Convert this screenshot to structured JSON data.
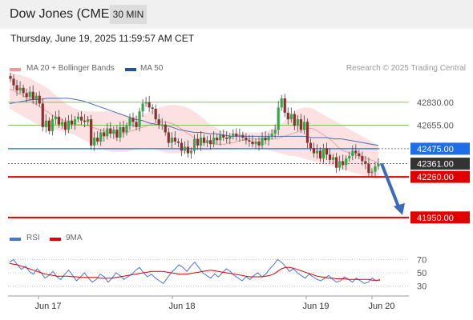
{
  "header": {
    "title": "Dow Jones (CME)",
    "interval": "30 MIN"
  },
  "timestamp": "Thursday, June 19, 2025 11:59:57 AM CET",
  "legend": {
    "bollinger": "MA 20 + Bollinger Bands",
    "ma50": "MA 50",
    "credit": "Research © 2025 Trading Central",
    "rsi": "RSI",
    "rsi_ma": "9MA"
  },
  "colors": {
    "up": "#3aa44a",
    "down": "#8b2f2f",
    "band": "#f8c8c8",
    "ma20": "#e8a4a4",
    "ma50": "#4a6fb5",
    "current": "#1f6ee6",
    "support": "#e00000",
    "resistance": "#7ab648",
    "arrow": "#3a6ab8",
    "rsi": "#4a72d8",
    "rsi_ma": "#e00000"
  },
  "chart_data": {
    "type": "candlestick",
    "title": "Dow Jones (CME)",
    "ylim": [
      41900,
      43000
    ],
    "x_labels": [
      "Jun 17",
      "Jun 18",
      "Jun 19",
      "Jun 20"
    ],
    "levels": [
      {
        "value": 42830,
        "label": "42830.00",
        "kind": "resistance"
      },
      {
        "value": 42655,
        "label": "42655.00",
        "kind": "resistance"
      },
      {
        "value": 42475,
        "label": "42475.00",
        "kind": "current"
      },
      {
        "value": 42361,
        "label": "42361.00",
        "kind": "last"
      },
      {
        "value": 42260,
        "label": "42260.00",
        "kind": "support"
      },
      {
        "value": 41950,
        "label": "41950.00",
        "kind": "support"
      }
    ],
    "closes": [
      43010,
      42960,
      42920,
      42940,
      42900,
      42870,
      42910,
      42850,
      42880,
      42820,
      42640,
      42690,
      42610,
      42700,
      42720,
      42660,
      42680,
      42620,
      42690,
      42660,
      42700,
      42720,
      42690,
      42680,
      42700,
      42500,
      42560,
      42530,
      42600,
      42570,
      42630,
      42590,
      42620,
      42560,
      42640,
      42600,
      42650,
      42710,
      42680,
      42640,
      42760,
      42820,
      42830,
      42790,
      42780,
      42700,
      42660,
      42660,
      42600,
      42520,
      42560,
      42530,
      42520,
      42460,
      42490,
      42440,
      42460,
      42550,
      42500,
      42560,
      42520,
      42540,
      42510,
      42560,
      42540,
      42580,
      42560,
      42550,
      42570,
      42590,
      42570,
      42580,
      42560,
      42540,
      42530,
      42510,
      42530,
      42500,
      42560,
      42540,
      42570,
      42590,
      42620,
      42790,
      42860,
      42750,
      42700,
      42740,
      42650,
      42700,
      42620,
      42680,
      42520,
      42480,
      42440,
      42460,
      42400,
      42480,
      42430,
      42390,
      42410,
      42330,
      42380,
      42350,
      42400,
      42420,
      42460,
      42440,
      42420,
      42380,
      42360,
      42290,
      42300,
      42340,
      42361
    ],
    "ma20": [
      42930,
      42920,
      42900,
      42890,
      42870,
      42850,
      42830,
      42810,
      42790,
      42770,
      42750,
      42730,
      42710,
      42700,
      42690,
      42680,
      42670,
      42660,
      42660,
      42650,
      42650,
      42640,
      42630,
      42620,
      42610,
      42600,
      42600,
      42590,
      42590,
      42590,
      42600,
      42610,
      42620,
      42630,
      42640,
      42650,
      42660,
      42670,
      42680,
      42680,
      42680,
      42670,
      42660,
      42640,
      42620,
      42600,
      42580,
      42560,
      42540,
      42530,
      42520,
      42520,
      42510,
      42510,
      42510,
      42510,
      42520,
      42520,
      42530,
      42540,
      42540,
      42550,
      42550,
      42550,
      42550,
      42550,
      42550,
      42550,
      42550,
      42560,
      42570,
      42580,
      42590,
      42600,
      42610,
      42620,
      42630,
      42630,
      42620,
      42600,
      42580,
      42560,
      42540,
      42510,
      42480,
      42460,
      42450,
      42440,
      42430,
      42420,
      42410,
      42400,
      42390,
      42380,
      42370
    ],
    "bb_upper": [
      43060,
      43050,
      43040,
      43030,
      43020,
      43000,
      42980,
      42960,
      42940,
      42910,
      42880,
      42850,
      42820,
      42800,
      42780,
      42770,
      42760,
      42760,
      42760,
      42760,
      42760,
      42760,
      42760,
      42750,
      42740,
      42730,
      42720,
      42720,
      42730,
      42740,
      42760,
      42780,
      42790,
      42800,
      42810,
      42810,
      42810,
      42800,
      42790,
      42770,
      42750,
      42720,
      42690,
      42660,
      42640,
      42620,
      42610,
      42600,
      42600,
      42600,
      42600,
      42600,
      42600,
      42600,
      42600,
      42610,
      42620,
      42640,
      42660,
      42690,
      42720,
      42760,
      42780,
      42790,
      42790,
      42780,
      42760,
      42740,
      42720,
      42700,
      42680,
      42660,
      42640,
      42620,
      42600,
      42580,
      42560,
      42540,
      42520,
      42500
    ],
    "bb_lower": [
      42780,
      42760,
      42740,
      42720,
      42700,
      42680,
      42660,
      42650,
      42640,
      42630,
      42620,
      42610,
      42600,
      42590,
      42580,
      42560,
      42540,
      42520,
      42500,
      42480,
      42470,
      42460,
      42450,
      42450,
      42450,
      42450,
      42460,
      42470,
      42480,
      42480,
      42480,
      42470,
      42460,
      42450,
      42440,
      42440,
      42440,
      42440,
      42450,
      42450,
      42460,
      42460,
      42460,
      42460,
      42470,
      42470,
      42470,
      42470,
      42470,
      42480,
      42480,
      42480,
      42480,
      42480,
      42480,
      42470,
      42460,
      42450,
      42440,
      42430,
      42420,
      42420,
      42410,
      42400,
      42390,
      42380,
      42370,
      42360,
      42350,
      42340,
      42330,
      42320,
      42310,
      42300,
      42290,
      42280,
      42270,
      42260,
      42250,
      42240
    ],
    "ma50": [
      42820,
      42830,
      42840,
      42850,
      42850,
      42860,
      42860,
      42860,
      42860,
      42850,
      42840,
      42820,
      42800,
      42780,
      42760,
      42740,
      42720,
      42700,
      42690,
      42670,
      42660,
      42650,
      42640,
      42620,
      42610,
      42600,
      42600,
      42590,
      42590,
      42580,
      42570,
      42570,
      42570,
      42570,
      42570,
      42570,
      42570,
      42570,
      42570,
      42570,
      42570,
      42560,
      42560,
      42560,
      42550,
      42550,
      42540,
      42530,
      42520,
      42510,
      42500
    ],
    "rsi": {
      "ylim": [
        20,
        80
      ],
      "ticks": [
        70,
        50,
        30
      ],
      "rsi": [
        66,
        70,
        62,
        55,
        60,
        52,
        48,
        56,
        50,
        42,
        46,
        52,
        44,
        40,
        48,
        54,
        46,
        38,
        44,
        50,
        42,
        36,
        40,
        48,
        44,
        36,
        42,
        50,
        46,
        40,
        44,
        48,
        54,
        58,
        50,
        44,
        48,
        42,
        38,
        34,
        42,
        50,
        56,
        62,
        58,
        52,
        60,
        66,
        58,
        50,
        46,
        42,
        48,
        44,
        50,
        56,
        52,
        46,
        42,
        38,
        44,
        40,
        46,
        50,
        44,
        48,
        56,
        62,
        70,
        66,
        60,
        52,
        56,
        50,
        46,
        42,
        48,
        44,
        40,
        38,
        42,
        46,
        40,
        36,
        38,
        44,
        40,
        36,
        42,
        38,
        34,
        36,
        42,
        38,
        40
      ],
      "ma": [
        64,
        63,
        62,
        60,
        58,
        56,
        54,
        52,
        50,
        48,
        47,
        46,
        45,
        45,
        45,
        45,
        44,
        44,
        43,
        43,
        43,
        43,
        43,
        42,
        42,
        42,
        42,
        43,
        44,
        45,
        46,
        47,
        48,
        49,
        50,
        51,
        52,
        52,
        52,
        52,
        51,
        50,
        49,
        48,
        48,
        48,
        49,
        50,
        51,
        52,
        53,
        54,
        53,
        52,
        51,
        50,
        49,
        48,
        47,
        46,
        45,
        44,
        44,
        44,
        44,
        45,
        46,
        48,
        52,
        56,
        58,
        58,
        57,
        55,
        53,
        51,
        49,
        47,
        45,
        44,
        43,
        42,
        42,
        41,
        41,
        41,
        40,
        40,
        40,
        40,
        40,
        40,
        39,
        39,
        39
      ]
    }
  }
}
